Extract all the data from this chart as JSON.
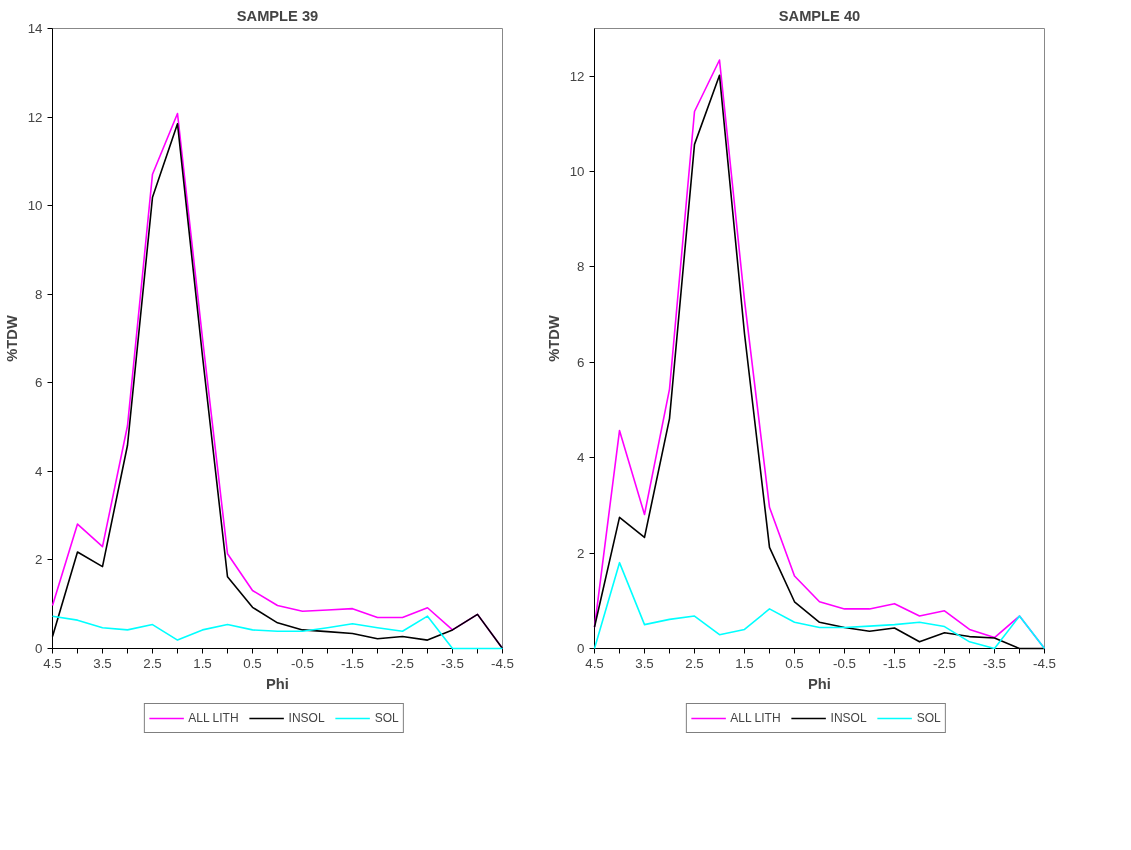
{
  "chart_data": [
    {
      "type": "line",
      "title": "SAMPLE 39",
      "xlabel": "Phi",
      "ylabel": "%TDW",
      "legend": "bottom",
      "grid": false,
      "x": [
        4.5,
        4.0,
        3.5,
        3.0,
        2.5,
        2.0,
        1.5,
        1.0,
        0.5,
        0.0,
        -0.5,
        -1.0,
        -1.5,
        -2.0,
        -2.5,
        -3.0,
        -3.5,
        -4.0,
        -4.5
      ],
      "xlim": [
        4.5,
        -4.5
      ],
      "xticks": [
        4.5,
        {
          "value": 4,
          "label": null
        },
        3.5,
        {
          "value": 3,
          "label": null
        },
        2.5,
        {
          "value": 2,
          "label": null
        },
        1.5,
        {
          "value": 1,
          "label": null
        },
        0.5,
        {
          "value": 0,
          "label": null
        },
        -0.5,
        {
          "value": -1,
          "label": null
        },
        -1.5,
        {
          "value": -2,
          "label": null
        },
        -2.5,
        {
          "value": -3,
          "label": null
        },
        -3.5,
        {
          "value": -4,
          "label": null
        },
        -4.5
      ],
      "ylim": [
        0,
        14
      ],
      "yticks": [
        0,
        2,
        4,
        6,
        8,
        10,
        12,
        14
      ],
      "series": [
        {
          "name": "ALL LITH",
          "color": "#ff00ff",
          "values": [
            0.97,
            2.81,
            2.3,
            5.03,
            10.71,
            12.08,
            7.0,
            2.14,
            1.31,
            0.97,
            0.84,
            0.87,
            0.9,
            0.7,
            0.7,
            0.92,
            0.42,
            0.77,
            0
          ]
        },
        {
          "name": "INSOL",
          "color": "#000000",
          "values": [
            0.27,
            2.18,
            1.85,
            4.59,
            10.19,
            11.85,
            6.6,
            1.62,
            0.93,
            0.58,
            0.42,
            0.38,
            0.34,
            0.22,
            0.27,
            0.19,
            0.42,
            0.77,
            0
          ]
        },
        {
          "name": "SOL",
          "color": "#00ffff",
          "values": [
            0.73,
            0.64,
            0.47,
            0.42,
            0.54,
            0.19,
            0.42,
            0.54,
            0.42,
            0.39,
            0.39,
            0.47,
            0.56,
            0.47,
            0.39,
            0.73,
            0,
            0,
            0
          ]
        }
      ]
    },
    {
      "type": "line",
      "title": "SAMPLE 40",
      "xlabel": "Phi",
      "ylabel": "%TDW",
      "legend": "bottom",
      "grid": false,
      "x": [
        4.5,
        4.0,
        3.5,
        3.0,
        2.5,
        2.0,
        1.5,
        1.0,
        0.5,
        0.0,
        -0.5,
        -1.0,
        -1.5,
        -2.0,
        -2.5,
        -3.0,
        -3.5,
        -4.0,
        -4.5
      ],
      "xlim": [
        4.5,
        -4.5
      ],
      "xticks": [
        4.5,
        {
          "value": 4,
          "label": null
        },
        3.5,
        {
          "value": 3,
          "label": null
        },
        2.5,
        {
          "value": 2,
          "label": null
        },
        1.5,
        {
          "value": 1,
          "label": null
        },
        0.5,
        {
          "value": 0,
          "label": null
        },
        -0.5,
        {
          "value": -1,
          "label": null
        },
        -1.5,
        {
          "value": -2,
          "label": null
        },
        -2.5,
        {
          "value": -3,
          "label": null
        },
        -3.5,
        {
          "value": -4,
          "label": null
        },
        -4.5
      ],
      "ylim": [
        0,
        13
      ],
      "yticks": [
        0,
        2,
        4,
        6,
        8,
        10,
        12
      ],
      "series": [
        {
          "name": "ALL LITH",
          "color": "#ff00ff",
          "values": [
            0.45,
            4.57,
            2.81,
            5.44,
            11.26,
            12.34,
            7.3,
            2.96,
            1.52,
            0.98,
            0.83,
            0.83,
            0.94,
            0.68,
            0.79,
            0.4,
            0.23,
            0.68,
            0
          ]
        },
        {
          "name": "INSOL",
          "color": "#000000",
          "values": [
            0.45,
            2.75,
            2.33,
            4.82,
            10.57,
            12.02,
            6.6,
            2.12,
            0.98,
            0.55,
            0.44,
            0.36,
            0.43,
            0.14,
            0.33,
            0.25,
            0.22,
            0,
            0
          ]
        },
        {
          "name": "SOL",
          "color": "#00ffff",
          "values": [
            0,
            1.8,
            0.5,
            0.61,
            0.68,
            0.29,
            0.4,
            0.83,
            0.55,
            0.44,
            0.44,
            0.47,
            0.5,
            0.55,
            0.46,
            0.14,
            0,
            0.68,
            0
          ]
        }
      ]
    }
  ]
}
